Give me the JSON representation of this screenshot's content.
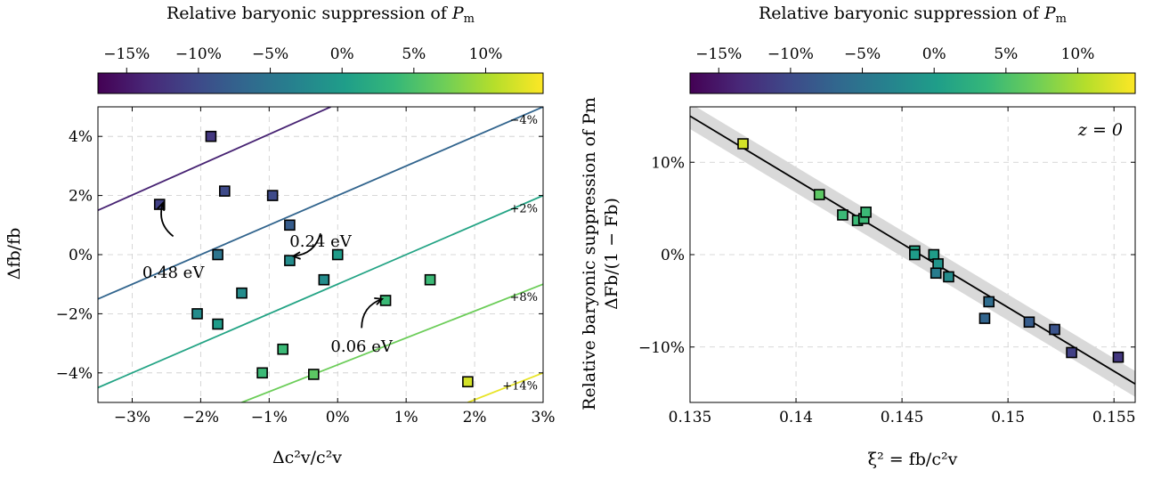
{
  "colors": {
    "viridis": [
      "#440154",
      "#482878",
      "#3e4989",
      "#31688e",
      "#26828e",
      "#1f9e89",
      "#35b779",
      "#6ece58",
      "#b5de2b",
      "#fde725"
    ],
    "band": "#d9d9d9",
    "fit_line": "#000000",
    "grid": "#cccccc"
  },
  "chart_data": [
    {
      "type": "scatter",
      "title": "",
      "xlabel": "Δc²v/c²v",
      "ylabel": "Δfb/fb",
      "xlim": [
        -3.5,
        3.0
      ],
      "ylim": [
        -5.0,
        5.0
      ],
      "x_ticks": [
        -3,
        -2,
        -1,
        0,
        1,
        2,
        3
      ],
      "x_tick_labels": [
        "−3%",
        "−2%",
        "−1%",
        "0%",
        "1%",
        "2%",
        "3%"
      ],
      "y_ticks": [
        -4,
        -2,
        0,
        2,
        4
      ],
      "y_tick_labels": [
        "−4%",
        "−2%",
        "0%",
        "2%",
        "4%"
      ],
      "grid": true,
      "colorbar": {
        "label_text": "Relative baryonic suppression of ",
        "label_symbol": "P",
        "label_sub": "m",
        "range": [
          -17,
          14
        ],
        "ticks": [
          -15,
          -10,
          -5,
          0,
          5,
          10
        ],
        "tick_labels": [
          "−15%",
          "−10%",
          "−5%",
          "0%",
          "5%",
          "10%"
        ],
        "position": "top"
      },
      "contours": [
        {
          "label": "−4%",
          "value": -4,
          "points": [
            [
              -3.5,
              1.5
            ],
            [
              -0.1,
              5.0
            ]
          ],
          "color_value": -14
        },
        {
          "label": "",
          "value": -10,
          "points": [
            [
              -3.5,
              -1.5
            ],
            [
              3.0,
              5.0
            ]
          ],
          "color_value": -7
        },
        {
          "label": "+2%",
          "value": 2,
          "points": [
            [
              -3.5,
              -4.5
            ],
            [
              3.0,
              2.0
            ]
          ],
          "color_value": 1
        },
        {
          "label": "+8%",
          "value": 8,
          "points": [
            [
              -1.4,
              -5.0
            ],
            [
              3.0,
              -1.0
            ]
          ],
          "color_value": 7
        },
        {
          "label": "+14%",
          "value": 14,
          "points": [
            [
              1.9,
              -5.0
            ],
            [
              3.0,
              -4.0
            ]
          ],
          "color_value": 13
        }
      ],
      "series": [
        {
          "points": [
            {
              "x": -1.85,
              "y": 4.0,
              "c": -12
            },
            {
              "x": -2.6,
              "y": 1.7,
              "c": -11
            },
            {
              "x": -1.65,
              "y": 2.15,
              "c": -10
            },
            {
              "x": -0.95,
              "y": 2.0,
              "c": -10
            },
            {
              "x": -0.7,
              "y": 1.0,
              "c": -8
            },
            {
              "x": -1.75,
              "y": 0.0,
              "c": -5
            },
            {
              "x": -0.7,
              "y": -0.2,
              "c": -2
            },
            {
              "x": 0.0,
              "y": 0.0,
              "c": 0
            },
            {
              "x": -0.2,
              "y": -0.85,
              "c": -2
            },
            {
              "x": -1.4,
              "y": -1.3,
              "c": -2
            },
            {
              "x": -2.05,
              "y": -2.0,
              "c": -2
            },
            {
              "x": -1.75,
              "y": -2.35,
              "c": 0
            },
            {
              "x": 0.7,
              "y": -1.55,
              "c": 4
            },
            {
              "x": 1.35,
              "y": -0.85,
              "c": 4
            },
            {
              "x": -0.8,
              "y": -3.2,
              "c": 4
            },
            {
              "x": -1.1,
              "y": -4.0,
              "c": 4
            },
            {
              "x": -0.35,
              "y": -4.05,
              "c": 6
            },
            {
              "x": 1.9,
              "y": -4.3,
              "c": 12
            }
          ]
        }
      ],
      "annotations": [
        {
          "text": "0.48 eV",
          "at": [
            -2.4,
            -0.6
          ],
          "arrow_from": [
            -2.4,
            0.8
          ],
          "arrow_to": [
            -2.55,
            1.75
          ]
        },
        {
          "text": "0.24 eV",
          "at": [
            -0.25,
            0.45
          ],
          "arrow_from": [
            -0.25,
            0.9
          ],
          "arrow_to": [
            -0.65,
            -0.05
          ]
        },
        {
          "text": "0.06 eV",
          "at": [
            0.35,
            -3.1
          ],
          "arrow_from": [
            0.35,
            -2.3
          ],
          "arrow_to": [
            0.65,
            -1.5
          ]
        }
      ]
    },
    {
      "type": "scatter",
      "title": "",
      "xlabel": "ξ² = fb/c²v",
      "ylabel": "Relative baryonic suppression of Pm",
      "ylabel2": "ΔFb/(1 − Fb)",
      "xlim": [
        0.135,
        0.156
      ],
      "ylim": [
        -16.0,
        16.0
      ],
      "x_ticks": [
        0.135,
        0.14,
        0.145,
        0.15,
        0.155
      ],
      "x_tick_labels": [
        "0.135",
        "0.14",
        "0.145",
        "0.15",
        "0.155"
      ],
      "y_ticks": [
        -10,
        0,
        10
      ],
      "y_tick_labels": [
        "−10%",
        "0%",
        "10%"
      ],
      "grid": true,
      "annotation_text": "z = 0",
      "colorbar": {
        "label_text": "Relative baryonic suppression of ",
        "label_symbol": "P",
        "label_sub": "m",
        "range": [
          -17,
          14
        ],
        "ticks": [
          -15,
          -10,
          -5,
          0,
          5,
          10
        ],
        "tick_labels": [
          "−15%",
          "−10%",
          "−5%",
          "0%",
          "5%",
          "10%"
        ],
        "position": "top"
      },
      "fit_line": {
        "points": [
          [
            0.135,
            15.0
          ],
          [
            0.156,
            -14.0
          ]
        ],
        "band": 1.4
      },
      "series": [
        {
          "points": [
            {
              "x": 0.1375,
              "y": 12.0,
              "c": 12
            },
            {
              "x": 0.1411,
              "y": 6.5,
              "c": 6
            },
            {
              "x": 0.1422,
              "y": 4.3,
              "c": 4
            },
            {
              "x": 0.1429,
              "y": 3.7,
              "c": 4
            },
            {
              "x": 0.1432,
              "y": 3.9,
              "c": 4
            },
            {
              "x": 0.1433,
              "y": 4.6,
              "c": 4
            },
            {
              "x": 0.1456,
              "y": 0.4,
              "c": 1
            },
            {
              "x": 0.1456,
              "y": 0.0,
              "c": 0
            },
            {
              "x": 0.1465,
              "y": 0.0,
              "c": 0
            },
            {
              "x": 0.1467,
              "y": -1.0,
              "c": -1
            },
            {
              "x": 0.1466,
              "y": -2.0,
              "c": -4
            },
            {
              "x": 0.1472,
              "y": -2.4,
              "c": -2
            },
            {
              "x": 0.1491,
              "y": -5.1,
              "c": -6
            },
            {
              "x": 0.1489,
              "y": -6.9,
              "c": -7
            },
            {
              "x": 0.151,
              "y": -7.3,
              "c": -8
            },
            {
              "x": 0.1522,
              "y": -8.1,
              "c": -9
            },
            {
              "x": 0.153,
              "y": -10.6,
              "c": -11
            },
            {
              "x": 0.1552,
              "y": -11.1,
              "c": -12
            }
          ]
        }
      ]
    }
  ]
}
